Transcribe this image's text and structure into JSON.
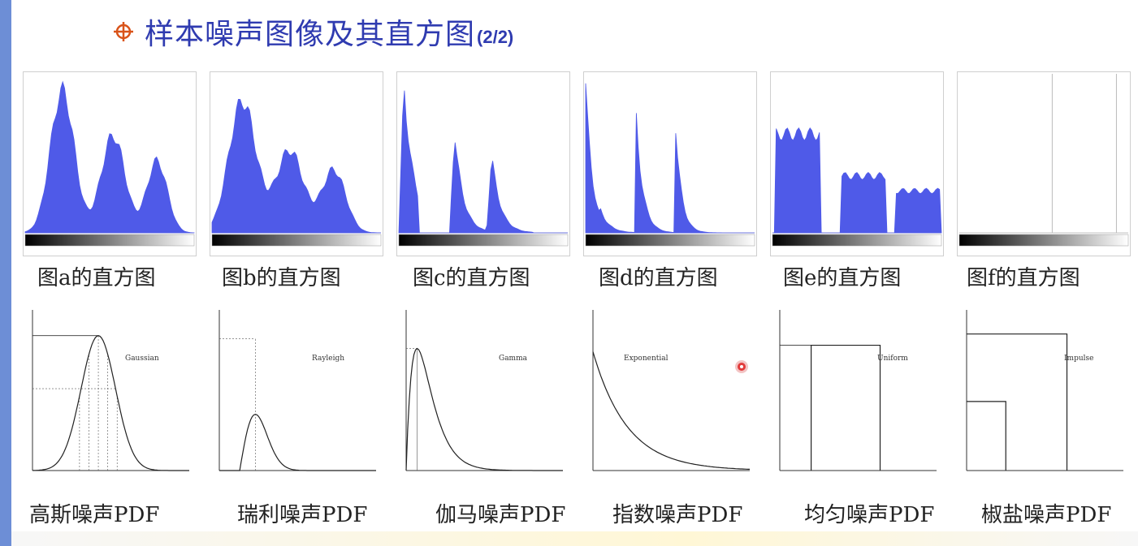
{
  "slide": {
    "title": "样本噪声图像及其直方图",
    "title_suffix": "(2/2)",
    "title_icon": "crosshair-bullet-icon",
    "accent_color": "#2f3bb0",
    "bullet_color": "#d9541a"
  },
  "histograms": [
    {
      "caption": "图a的直方图"
    },
    {
      "caption": "图b的直方图"
    },
    {
      "caption": "图c的直方图"
    },
    {
      "caption": "图d的直方图"
    },
    {
      "caption": "图e的直方图"
    },
    {
      "caption": "图f的直方图"
    }
  ],
  "pdfs": [
    {
      "caption": "高斯噪声PDF",
      "curve_label": "Gaussian"
    },
    {
      "caption": "瑞利噪声PDF",
      "curve_label": "Rayleigh"
    },
    {
      "caption": "伽马噪声PDF",
      "curve_label": "Gamma"
    },
    {
      "caption": "指数噪声PDF",
      "curve_label": "Exponential"
    },
    {
      "caption": "均匀噪声PDF",
      "curve_label": "Uniform"
    },
    {
      "caption": "椒盐噪声PDF",
      "curve_label": "Impulse"
    }
  ],
  "histogram_color": "#4f5ae8",
  "cursor_icon": "pointer-dot-icon"
}
